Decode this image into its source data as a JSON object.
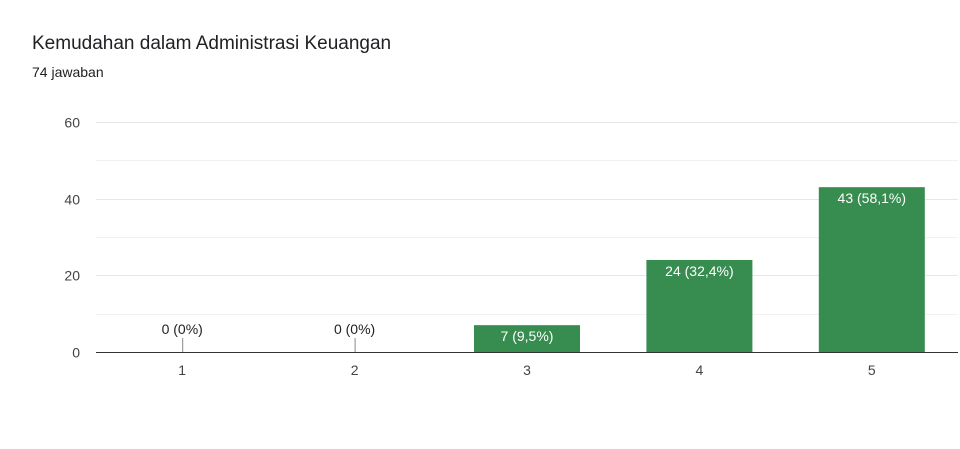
{
  "header": {
    "title": "Kemudahan dalam Administrasi Keuangan",
    "response_count": "74 jawaban"
  },
  "colors": {
    "bar": "#378c4f",
    "grid_major": "#e6e6e6",
    "grid_minor": "#f2f2f2",
    "axis": "#333333",
    "label_inside": "#ffffff",
    "label_outside": "#222222"
  },
  "chart_data": {
    "type": "bar",
    "title": "Kemudahan dalam Administrasi Keuangan",
    "categories": [
      "1",
      "2",
      "3",
      "4",
      "5"
    ],
    "values": [
      0,
      0,
      7,
      24,
      43
    ],
    "data_labels": [
      "0 (0%)",
      "0 (0%)",
      "7 (9,5%)",
      "24 (32,4%)",
      "43 (58,1%)"
    ],
    "ylim": [
      0,
      60
    ],
    "yticks": [
      0,
      20,
      40,
      60
    ],
    "xlabel": "",
    "ylabel": "",
    "grid": true,
    "legend": "none"
  }
}
